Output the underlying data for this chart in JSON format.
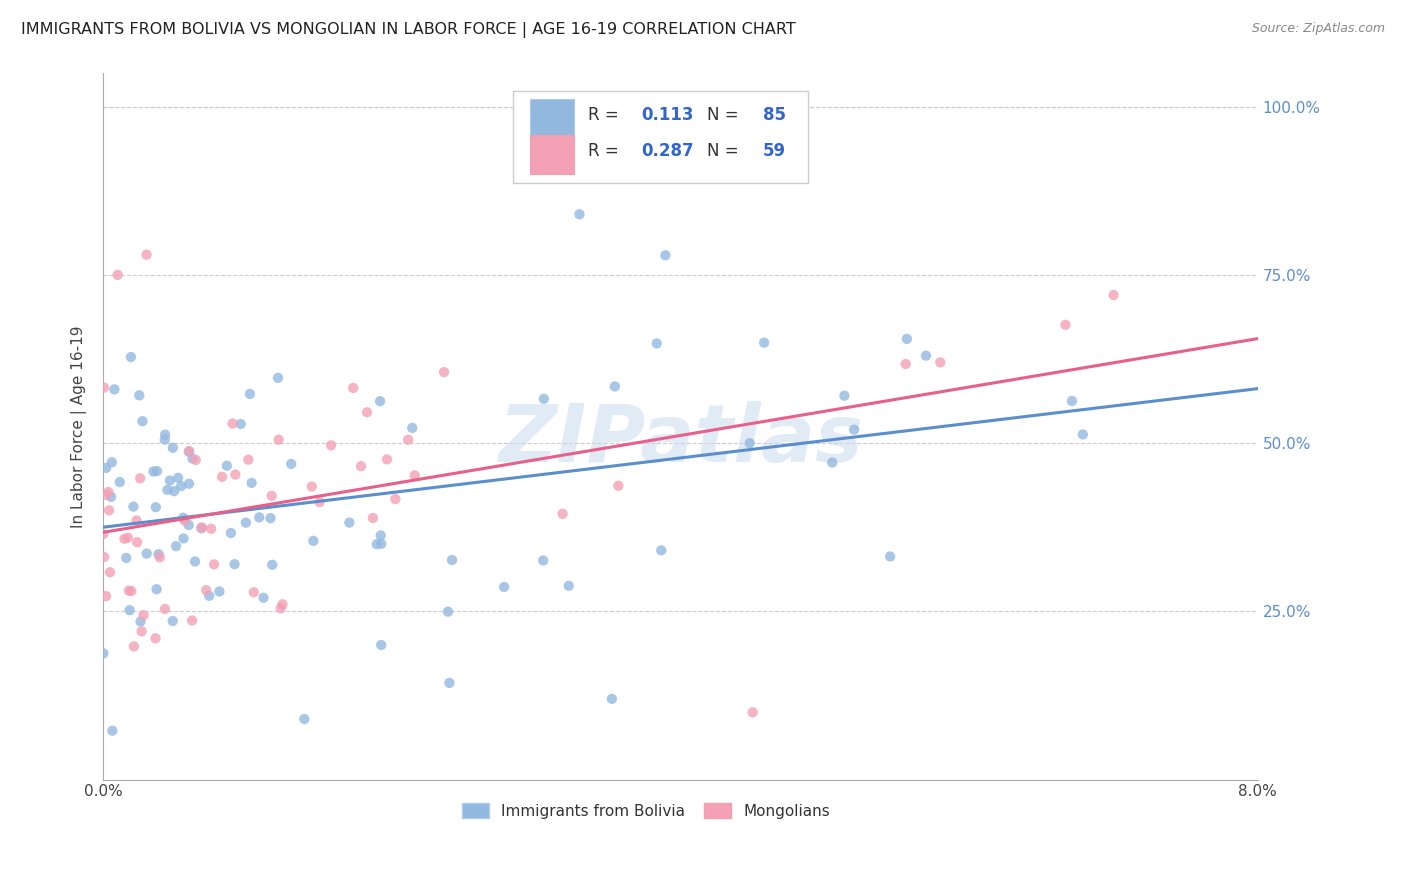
{
  "title": "IMMIGRANTS FROM BOLIVIA VS MONGOLIAN IN LABOR FORCE | AGE 16-19 CORRELATION CHART",
  "source": "Source: ZipAtlas.com",
  "ylabel": "In Labor Force | Age 16-19",
  "y_tick_labels": [
    "25.0%",
    "50.0%",
    "75.0%",
    "100.0%"
  ],
  "y_tick_values": [
    0.25,
    0.5,
    0.75,
    1.0
  ],
  "xmin": 0.0,
  "xmax": 0.08,
  "ymin": 0.0,
  "ymax": 1.05,
  "bolivia_R": 0.113,
  "bolivia_N": 85,
  "mongolian_R": 0.287,
  "mongolian_N": 59,
  "bolivia_color": "#93b8e0",
  "mongolian_color": "#f4a0b5",
  "bolivia_line_color": "#5b8fcc",
  "mongolian_line_color": "#e8608a",
  "legend_label_bolivia": "Immigrants from Bolivia",
  "legend_label_mongolian": "Mongolians",
  "watermark": "ZIPatlas",
  "background_color": "#ffffff",
  "grid_color": "#cccccc",
  "title_color": "#222222",
  "source_color": "#888888",
  "right_yaxis_color": "#5b8fcc"
}
